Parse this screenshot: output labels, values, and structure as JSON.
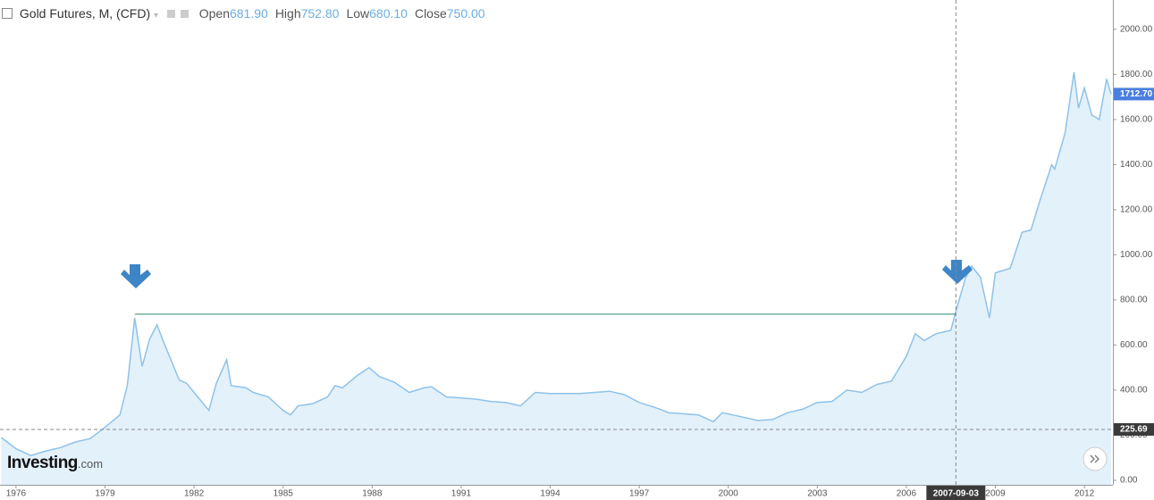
{
  "chart_data": {
    "type": "area",
    "title": "Gold Futures, M, (CFD)",
    "ohlc": [
      {
        "label": "Open",
        "value": "681.90"
      },
      {
        "label": "High",
        "value": "752.80"
      },
      {
        "label": "Low",
        "value": "680.10"
      },
      {
        "label": "Close",
        "value": "750.00"
      }
    ],
    "brand": [
      "Investing",
      ".com"
    ],
    "color": "#8ec2ea",
    "fill": "#e3f1fb",
    "x": [
      1975.5,
      1976.0,
      1976.5,
      1977.0,
      1977.5,
      1978.0,
      1978.5,
      1979.0,
      1979.5,
      1979.75,
      1980.0,
      1980.25,
      1980.5,
      1980.75,
      1981.0,
      1981.25,
      1981.5,
      1981.75,
      1982.0,
      1982.25,
      1982.5,
      1982.75,
      1983.1,
      1983.25,
      1983.75,
      1984.0,
      1984.5,
      1985.0,
      1985.25,
      1985.5,
      1986.0,
      1986.5,
      1986.75,
      1987.0,
      1987.5,
      1987.9,
      1988.25,
      1988.75,
      1989.25,
      1989.75,
      1990.0,
      1990.5,
      1991.0,
      1991.5,
      1992.0,
      1992.5,
      1993.0,
      1993.5,
      1994.0,
      1995.0,
      1996.0,
      1996.5,
      1997.0,
      1997.5,
      1998.0,
      1999.0,
      1999.5,
      1999.8,
      2000.5,
      2001.0,
      2001.5,
      2002.0,
      2002.5,
      2003.0,
      2003.5,
      2004.0,
      2004.5,
      2005.0,
      2005.5,
      2006.0,
      2006.3,
      2006.6,
      2007.0,
      2007.5,
      2007.67,
      2008.0,
      2008.2,
      2008.5,
      2008.8,
      2009.0,
      2009.5,
      2009.9,
      2010.2,
      2010.5,
      2010.9,
      2011.0,
      2011.35,
      2011.65,
      2011.8,
      2012.0,
      2012.25,
      2012.5,
      2012.75,
      2012.9
    ],
    "values": [
      190,
      140,
      110,
      130,
      145,
      170,
      185,
      235,
      290,
      420,
      720,
      505,
      625,
      690,
      605,
      525,
      445,
      430,
      390,
      350,
      310,
      430,
      535,
      420,
      410,
      390,
      370,
      310,
      290,
      330,
      340,
      370,
      420,
      410,
      465,
      500,
      460,
      435,
      390,
      410,
      415,
      370,
      365,
      360,
      350,
      345,
      330,
      390,
      385,
      385,
      395,
      380,
      345,
      325,
      300,
      290,
      260,
      300,
      280,
      265,
      270,
      300,
      315,
      345,
      350,
      400,
      390,
      425,
      440,
      550,
      650,
      620,
      650,
      665,
      750,
      900,
      950,
      900,
      720,
      920,
      940,
      1100,
      1110,
      1240,
      1400,
      1380,
      1540,
      1810,
      1650,
      1740,
      1620,
      1600,
      1780,
      1712.7
    ],
    "xlim": [
      1975.46,
      2012.96
    ],
    "ylim": [
      -20,
      2130
    ],
    "xticks": [
      1976,
      1979,
      1982,
      1985,
      1988,
      1991,
      1994,
      1997,
      2000,
      2003,
      2006,
      2009,
      2012
    ],
    "yticks": [
      {
        "value": 0,
        "label": "0.00"
      },
      {
        "value": 200,
        "label": "200.00"
      },
      {
        "value": 400,
        "label": "400.00"
      },
      {
        "value": 600,
        "label": "600.00"
      },
      {
        "value": 800,
        "label": "800.00"
      },
      {
        "value": 1000,
        "label": "1000.00"
      },
      {
        "value": 1200,
        "label": "1200.00"
      },
      {
        "value": 1400,
        "label": "1400.00"
      },
      {
        "value": 1600,
        "label": "1600.00"
      },
      {
        "value": 1800,
        "label": "1800.00"
      },
      {
        "value": 2000,
        "label": "2000.00"
      }
    ],
    "last_price": {
      "value": 1712.7,
      "label": "1712.70"
    },
    "crosshair": {
      "x": {
        "value": 2007.67,
        "label": "2007-09-03"
      },
      "y": 225.69
    },
    "reference_line": {
      "x": [
        1980.0,
        2007.67
      ],
      "y": 737,
      "color": "#2e8b7a"
    }
  }
}
